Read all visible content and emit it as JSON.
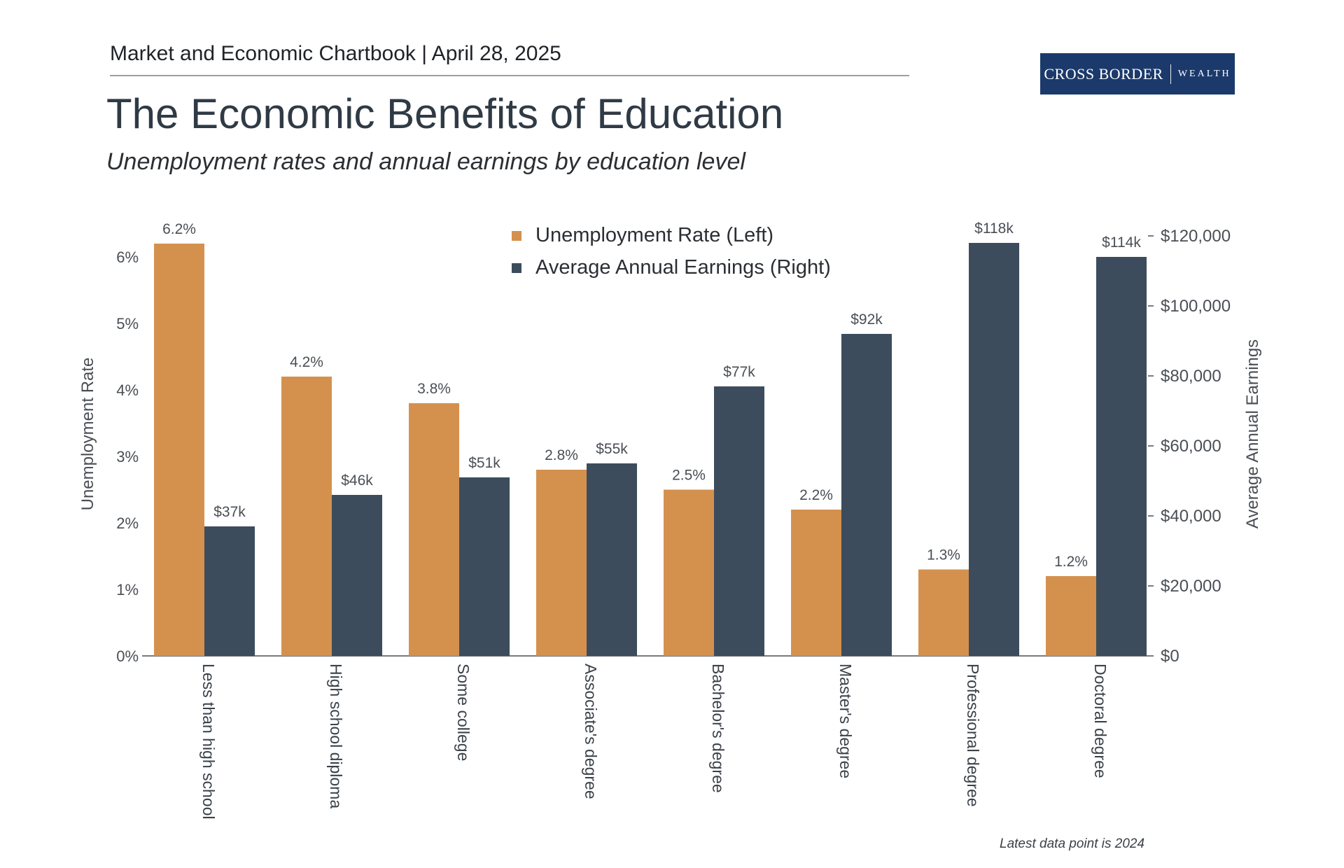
{
  "header": {
    "kicker": "Market and Economic Chartbook | April 28, 2025",
    "logo_main": "CROSS BORDER",
    "logo_sub": "WEALTH",
    "title": "The Economic Benefits of Education",
    "subtitle": "Unemployment rates and annual earnings by education level"
  },
  "footnote": "Latest data point is 2024",
  "colors": {
    "unemployment": "#d4914e",
    "earnings": "#3c4c5c",
    "axis_text": "#4a4f55",
    "logo_bg": "#1b3a6b"
  },
  "chart_data": {
    "type": "bar",
    "categories": [
      "Less than high school",
      "High school diploma",
      "Some college",
      "Associate's degree",
      "Bachelor's degree",
      "Master's degree",
      "Professional degree",
      "Doctoral degree"
    ],
    "series": [
      {
        "name": "Unemployment Rate (Left)",
        "axis": "left",
        "values": [
          6.2,
          4.2,
          3.8,
          2.8,
          2.5,
          2.2,
          1.3,
          1.2
        ],
        "labels": [
          "6.2%",
          "4.2%",
          "3.8%",
          "2.8%",
          "2.5%",
          "2.2%",
          "1.3%",
          "1.2%"
        ]
      },
      {
        "name": "Average Annual Earnings (Right)",
        "axis": "right",
        "values": [
          37000,
          46000,
          51000,
          55000,
          77000,
          92000,
          118000,
          114000
        ],
        "labels": [
          "$37k",
          "$46k",
          "$51k",
          "$55k",
          "$77k",
          "$92k",
          "$118k",
          "$114k"
        ]
      }
    ],
    "ylabel_left": "Unemployment Rate",
    "ylabel_right": "Average Annual Earnings",
    "ylim_left": [
      0,
      6.3
    ],
    "ylim_right": [
      0,
      120000
    ],
    "yticks_left": [
      "0%",
      "1%",
      "2%",
      "3%",
      "4%",
      "5%",
      "6%"
    ],
    "yticks_right": [
      "$0",
      "$20,000",
      "$40,000",
      "$60,000",
      "$80,000",
      "$100,000",
      "$120,000"
    ],
    "legend_position": "top-center",
    "grid": false
  }
}
